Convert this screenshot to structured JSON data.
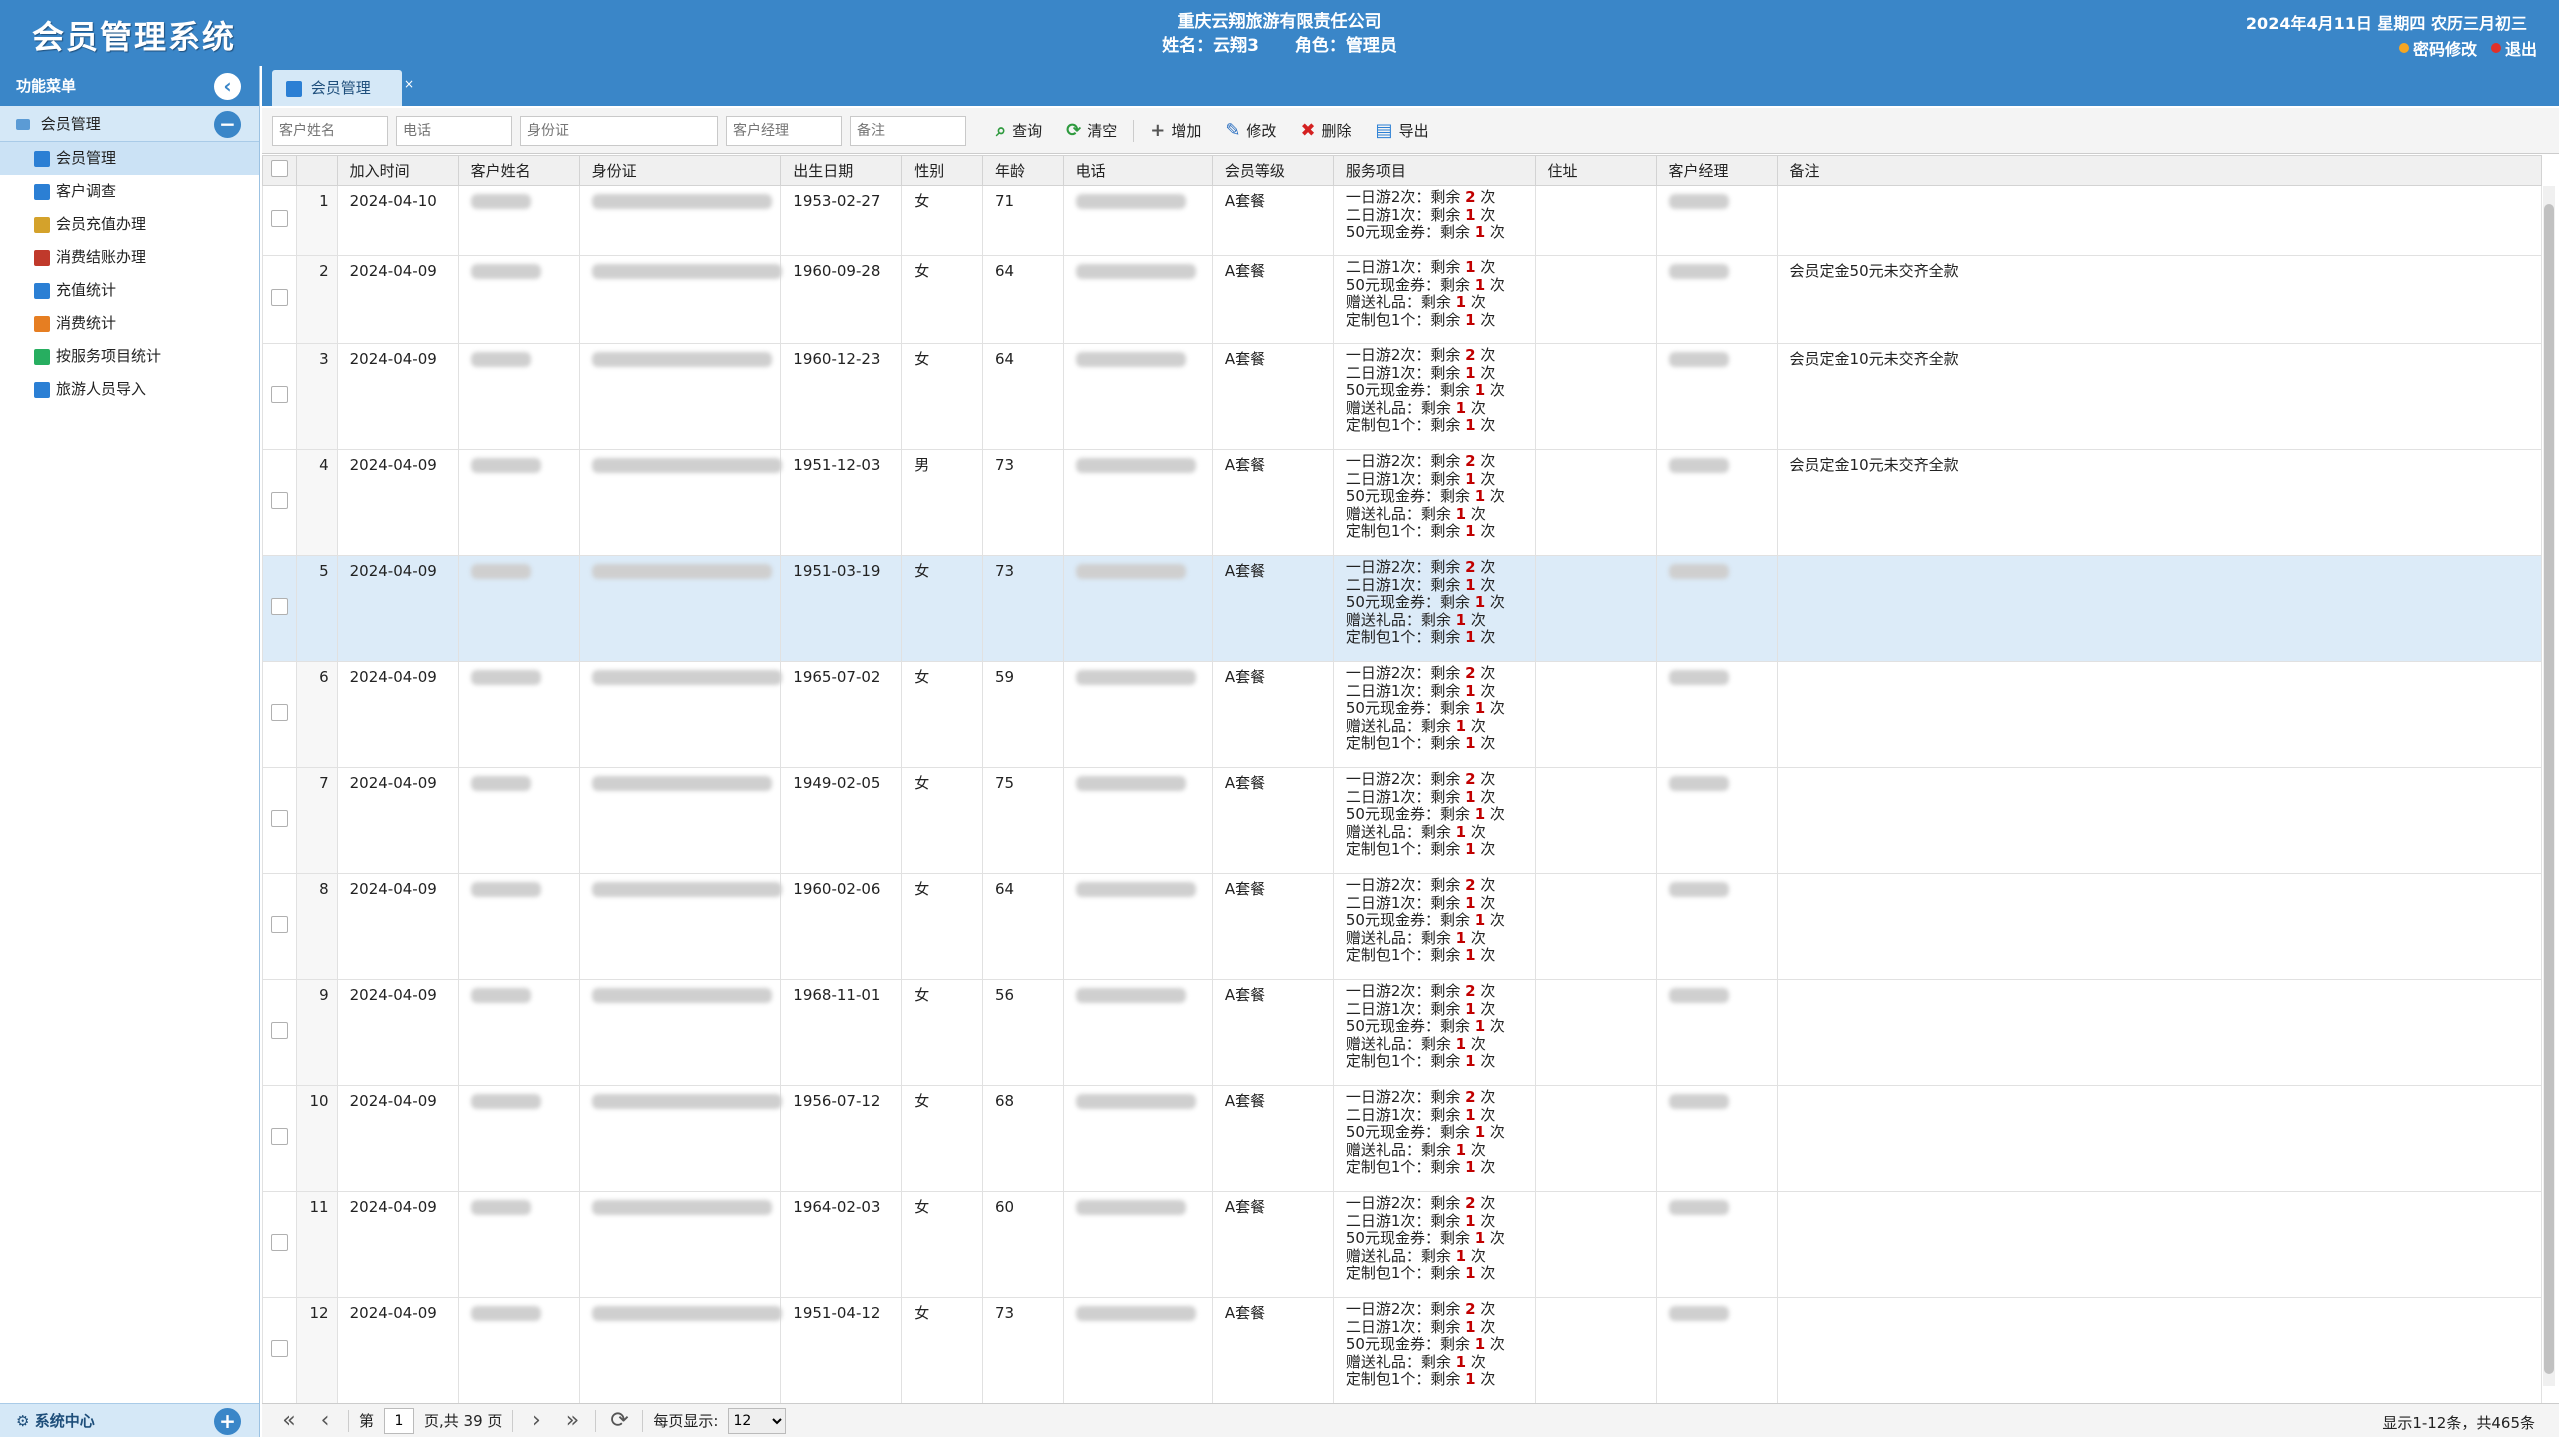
{
  "header": {
    "logo": "会员管理系统",
    "company": "重庆云翔旅游有限责任公司",
    "user_label": "姓名：云翔3",
    "role_label": "角色：管理员",
    "date": "2024年4月11日 星期四 农历三月初三",
    "change_password": "密码修改",
    "logout": "退出"
  },
  "sidebar": {
    "title": "功能菜单",
    "group": "会员管理",
    "items": [
      {
        "label": "会员管理",
        "icon": "user-icon",
        "color": "#2b7fd4"
      },
      {
        "label": "客户调查",
        "icon": "user-icon",
        "color": "#2b7fd4"
      },
      {
        "label": "会员充值办理",
        "icon": "money-icon",
        "color": "#d4a22b"
      },
      {
        "label": "消费结账办理",
        "icon": "yen-icon",
        "color": "#c0392b"
      },
      {
        "label": "充值统计",
        "icon": "line-chart-icon",
        "color": "#2b7fd4"
      },
      {
        "label": "消费统计",
        "icon": "bar-chart-icon",
        "color": "#e67e22"
      },
      {
        "label": "按服务项目统计",
        "icon": "bar-chart-icon",
        "color": "#27ae60"
      },
      {
        "label": "旅游人员导入",
        "icon": "id-card-icon",
        "color": "#2b7fd4"
      }
    ],
    "footer": "系统中心"
  },
  "tab": {
    "label": "会员管理"
  },
  "toolbar": {
    "placeholders": {
      "name": "客户姓名",
      "phone": "电话",
      "id": "身份证",
      "manager": "客户经理",
      "note": "备注"
    },
    "buttons": {
      "search": "查询",
      "clear": "清空",
      "add": "增加",
      "edit": "修改",
      "delete": "删除",
      "export": "导出"
    }
  },
  "table": {
    "headers": [
      "加入时间",
      "客户姓名",
      "身份证",
      "出生日期",
      "性别",
      "年龄",
      "电话",
      "会员等级",
      "服务项目",
      "住址",
      "客户经理",
      "备注"
    ],
    "rows": [
      {
        "n": "1",
        "join": "2024-04-10",
        "birth": "1953-02-27",
        "sex": "女",
        "age": "71",
        "level": "A套餐",
        "note": "",
        "svc": [
          [
            "一日游2次：剩余 ",
            "2",
            " 次"
          ],
          [
            "二日游1次：剩余 ",
            "1",
            " 次"
          ],
          [
            "50元现金券：剩余 ",
            "1",
            " 次"
          ]
        ]
      },
      {
        "n": "2",
        "join": "2024-04-09",
        "birth": "1960-09-28",
        "sex": "女",
        "age": "64",
        "level": "A套餐",
        "note": "会员定金50元未交齐全款",
        "svc": [
          [
            "二日游1次：剩余 ",
            "1",
            " 次"
          ],
          [
            "50元现金券：剩余 ",
            "1",
            " 次"
          ],
          [
            "赠送礼品：剩余 ",
            "1",
            " 次"
          ],
          [
            "定制包1个：剩余 ",
            "1",
            " 次"
          ]
        ]
      },
      {
        "n": "3",
        "join": "2024-04-09",
        "birth": "1960-12-23",
        "sex": "女",
        "age": "64",
        "level": "A套餐",
        "note": "会员定金10元未交齐全款",
        "svc": [
          [
            "一日游2次：剩余 ",
            "2",
            " 次"
          ],
          [
            "二日游1次：剩余 ",
            "1",
            " 次"
          ],
          [
            "50元现金券：剩余 ",
            "1",
            " 次"
          ],
          [
            "赠送礼品：剩余 ",
            "1",
            " 次"
          ],
          [
            "定制包1个：剩余 ",
            "1",
            " 次"
          ]
        ]
      },
      {
        "n": "4",
        "join": "2024-04-09",
        "birth": "1951-12-03",
        "sex": "男",
        "age": "73",
        "level": "A套餐",
        "note": "会员定金10元未交齐全款",
        "svc": [
          [
            "一日游2次：剩余 ",
            "2",
            " 次"
          ],
          [
            "二日游1次：剩余 ",
            "1",
            " 次"
          ],
          [
            "50元现金券：剩余 ",
            "1",
            " 次"
          ],
          [
            "赠送礼品：剩余 ",
            "1",
            " 次"
          ],
          [
            "定制包1个：剩余 ",
            "1",
            " 次"
          ]
        ]
      },
      {
        "n": "5",
        "join": "2024-04-09",
        "birth": "1951-03-19",
        "sex": "女",
        "age": "73",
        "level": "A套餐",
        "note": "",
        "svc": [
          [
            "一日游2次：剩余 ",
            "2",
            " 次"
          ],
          [
            "二日游1次：剩余 ",
            "1",
            " 次"
          ],
          [
            "50元现金券：剩余 ",
            "1",
            " 次"
          ],
          [
            "赠送礼品：剩余 ",
            "1",
            " 次"
          ],
          [
            "定制包1个：剩余 ",
            "1",
            " 次"
          ]
        ]
      },
      {
        "n": "6",
        "join": "2024-04-09",
        "birth": "1965-07-02",
        "sex": "女",
        "age": "59",
        "level": "A套餐",
        "note": "",
        "svc": [
          [
            "一日游2次：剩余 ",
            "2",
            " 次"
          ],
          [
            "二日游1次：剩余 ",
            "1",
            " 次"
          ],
          [
            "50元现金券：剩余 ",
            "1",
            " 次"
          ],
          [
            "赠送礼品：剩余 ",
            "1",
            " 次"
          ],
          [
            "定制包1个：剩余 ",
            "1",
            " 次"
          ]
        ]
      },
      {
        "n": "7",
        "join": "2024-04-09",
        "birth": "1949-02-05",
        "sex": "女",
        "age": "75",
        "level": "A套餐",
        "note": "",
        "svc": [
          [
            "一日游2次：剩余 ",
            "2",
            " 次"
          ],
          [
            "二日游1次：剩余 ",
            "1",
            " 次"
          ],
          [
            "50元现金券：剩余 ",
            "1",
            " 次"
          ],
          [
            "赠送礼品：剩余 ",
            "1",
            " 次"
          ],
          [
            "定制包1个：剩余 ",
            "1",
            " 次"
          ]
        ]
      },
      {
        "n": "8",
        "join": "2024-04-09",
        "birth": "1960-02-06",
        "sex": "女",
        "age": "64",
        "level": "A套餐",
        "note": "",
        "svc": [
          [
            "一日游2次：剩余 ",
            "2",
            " 次"
          ],
          [
            "二日游1次：剩余 ",
            "1",
            " 次"
          ],
          [
            "50元现金券：剩余 ",
            "1",
            " 次"
          ],
          [
            "赠送礼品：剩余 ",
            "1",
            " 次"
          ],
          [
            "定制包1个：剩余 ",
            "1",
            " 次"
          ]
        ]
      },
      {
        "n": "9",
        "join": "2024-04-09",
        "birth": "1968-11-01",
        "sex": "女",
        "age": "56",
        "level": "A套餐",
        "note": "",
        "svc": [
          [
            "一日游2次：剩余 ",
            "2",
            " 次"
          ],
          [
            "二日游1次：剩余 ",
            "1",
            " 次"
          ],
          [
            "50元现金券：剩余 ",
            "1",
            " 次"
          ],
          [
            "赠送礼品：剩余 ",
            "1",
            " 次"
          ],
          [
            "定制包1个：剩余 ",
            "1",
            " 次"
          ]
        ]
      },
      {
        "n": "10",
        "join": "2024-04-09",
        "birth": "1956-07-12",
        "sex": "女",
        "age": "68",
        "level": "A套餐",
        "note": "",
        "svc": [
          [
            "一日游2次：剩余 ",
            "2",
            " 次"
          ],
          [
            "二日游1次：剩余 ",
            "1",
            " 次"
          ],
          [
            "50元现金券：剩余 ",
            "1",
            " 次"
          ],
          [
            "赠送礼品：剩余 ",
            "1",
            " 次"
          ],
          [
            "定制包1个：剩余 ",
            "1",
            " 次"
          ]
        ]
      },
      {
        "n": "11",
        "join": "2024-04-09",
        "birth": "1964-02-03",
        "sex": "女",
        "age": "60",
        "level": "A套餐",
        "note": "",
        "svc": [
          [
            "一日游2次：剩余 ",
            "2",
            " 次"
          ],
          [
            "二日游1次：剩余 ",
            "1",
            " 次"
          ],
          [
            "50元现金券：剩余 ",
            "1",
            " 次"
          ],
          [
            "赠送礼品：剩余 ",
            "1",
            " 次"
          ],
          [
            "定制包1个：剩余 ",
            "1",
            " 次"
          ]
        ]
      },
      {
        "n": "12",
        "join": "2024-04-09",
        "birth": "1951-04-12",
        "sex": "女",
        "age": "73",
        "level": "A套餐",
        "note": "",
        "svc": [
          [
            "一日游2次：剩余 ",
            "2",
            " 次"
          ],
          [
            "二日游1次：剩余 ",
            "1",
            " 次"
          ],
          [
            "50元现金券：剩余 ",
            "1",
            " 次"
          ],
          [
            "赠送礼品：剩余 ",
            "1",
            " 次"
          ],
          [
            "定制包1个：剩余 ",
            "1",
            " 次"
          ]
        ]
      }
    ]
  },
  "pager": {
    "page_prefix": "第",
    "page_value": "1",
    "page_suffix": "页,共 39 页",
    "per_page_label": "每页显示:",
    "per_page_value": "12",
    "info": "显示1-12条，共465条"
  },
  "colors": {
    "header_blue": "#3a86c8",
    "highlight_red": "#c00000",
    "selected_row": "#dcebf8"
  }
}
